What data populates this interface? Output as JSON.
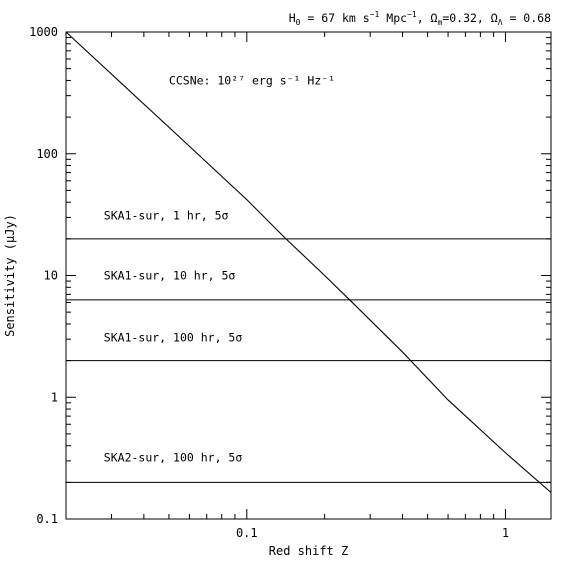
{
  "chart_data": {
    "type": "line",
    "title": "",
    "header_annotation": "H0 = 67 km s−1 Mpc−1, Ωm=0.32, ΩΛ = 0.68",
    "xlabel": "Red shift Z",
    "ylabel": "Sensitivity (μJy)",
    "x_scale": "log",
    "y_scale": "log",
    "xlim": [
      0.02,
      1.5
    ],
    "ylim": [
      0.1,
      1000
    ],
    "x_ticks": [
      {
        "value": 0.1,
        "label": "0.1"
      },
      {
        "value": 1,
        "label": "1"
      }
    ],
    "y_ticks": [
      {
        "value": 0.1,
        "label": "0.1"
      },
      {
        "value": 1,
        "label": "1"
      },
      {
        "value": 10,
        "label": "10"
      },
      {
        "value": 100,
        "label": "100"
      },
      {
        "value": 1000,
        "label": "1000"
      }
    ],
    "grid": false,
    "series": [
      {
        "name": "CCSNe: 10^27 erg s^-1 Hz^-1",
        "kind": "curve",
        "x": [
          0.02,
          0.05,
          0.1,
          0.14,
          0.2,
          0.25,
          0.4,
          0.43,
          0.6,
          1.0,
          1.5
        ],
        "y": [
          1000,
          165,
          42,
          20.5,
          10.0,
          6.3,
          2.35,
          2.0,
          0.95,
          0.35,
          0.165
        ]
      },
      {
        "name": "SKA1-sur, 1 hr, 5σ",
        "kind": "hline",
        "y": 20
      },
      {
        "name": "SKA1-sur, 10 hr, 5σ",
        "kind": "hline",
        "y": 6.3
      },
      {
        "name": "SKA1-sur, 100 hr, 5σ",
        "kind": "hline",
        "y": 2.0
      },
      {
        "name": "SKA2-sur, 100 hr, 5σ",
        "kind": "hline",
        "y": 0.2
      }
    ],
    "annotations": [
      {
        "text": "CCSNe: 10²⁷ erg s⁻¹ Hz⁻¹",
        "x": 0.05,
        "y": 400
      },
      {
        "text": "SKA1-sur, 1 hr, 5σ",
        "x": 0.028,
        "y": 31
      },
      {
        "text": "SKA1-sur, 10 hr, 5σ",
        "x": 0.028,
        "y": 10
      },
      {
        "text": "SKA1-sur, 100 hr, 5σ",
        "x": 0.028,
        "y": 3.1
      },
      {
        "text": "SKA2-sur, 100 hr, 5σ",
        "x": 0.028,
        "y": 0.32
      }
    ]
  }
}
